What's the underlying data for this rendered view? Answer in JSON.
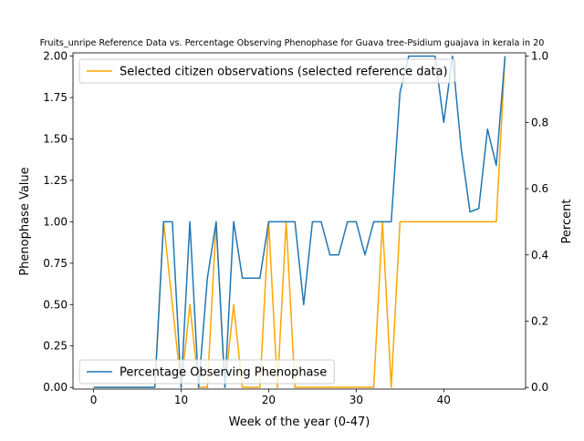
{
  "chart_data": {
    "type": "line",
    "title": "Fruits_unripe Reference Data vs. Percentage Observing Phenophase for Guava tree-Psidium guajava in kerala in 20",
    "xlabel": "Week of the year (0-47)",
    "ylabel_left": "Phenophase Value",
    "ylabel_right": "Percent",
    "xlim": [
      -2.35,
      49.35
    ],
    "ylim_left": [
      -0.01,
      2.02
    ],
    "ylim_right": [
      -0.005,
      1.01
    ],
    "x_ticks": [
      0,
      10,
      20,
      30,
      40
    ],
    "x_tick_labels": [
      "0",
      "10",
      "20",
      "30",
      "40"
    ],
    "y_left_ticks": [
      0.0,
      0.25,
      0.5,
      0.75,
      1.0,
      1.25,
      1.5,
      1.75,
      2.0
    ],
    "y_left_tick_labels": [
      "0.00",
      "0.25",
      "0.50",
      "0.75",
      "1.00",
      "1.25",
      "1.50",
      "1.75",
      "2.00"
    ],
    "y_right_ticks": [
      0.0,
      0.2,
      0.4,
      0.6,
      0.8,
      1.0
    ],
    "y_right_tick_labels": [
      "0.0",
      "0.2",
      "0.4",
      "0.6",
      "0.8",
      "1.0"
    ],
    "grid": false,
    "series": [
      {
        "name": "Selected citizen observations (selected reference data)",
        "axis": "left",
        "color": "#ffa500",
        "legend_position": "upper-left",
        "x": [
          0,
          1,
          2,
          3,
          4,
          5,
          6,
          7,
          8,
          9,
          10,
          11,
          12,
          13,
          14,
          15,
          16,
          17,
          18,
          19,
          20,
          21,
          22,
          23,
          24,
          25,
          26,
          27,
          28,
          29,
          30,
          31,
          32,
          33,
          34,
          35,
          36,
          37,
          38,
          39,
          40,
          41,
          42,
          43,
          44,
          45,
          46,
          47
        ],
        "y": [
          0,
          0,
          0,
          0,
          0,
          0,
          0,
          0,
          1,
          0.5,
          0,
          0.5,
          0,
          0,
          1,
          0,
          0.5,
          0,
          0,
          0,
          1,
          0,
          1,
          0,
          0,
          0,
          0,
          0,
          0,
          0,
          0,
          0,
          0,
          1,
          0,
          1,
          1,
          1,
          1,
          1,
          1,
          1,
          1,
          1,
          1,
          1,
          1,
          2
        ]
      },
      {
        "name": "Percentage Observing Phenophase",
        "axis": "right",
        "color": "#1f77b4",
        "legend_position": "lower-left",
        "x": [
          0,
          1,
          2,
          3,
          4,
          5,
          6,
          7,
          8,
          9,
          10,
          11,
          12,
          13,
          14,
          15,
          16,
          17,
          18,
          19,
          20,
          21,
          22,
          23,
          24,
          25,
          26,
          27,
          28,
          29,
          30,
          31,
          32,
          33,
          34,
          35,
          36,
          37,
          38,
          39,
          40,
          41,
          42,
          43,
          44,
          45,
          46,
          47
        ],
        "y": [
          0,
          0,
          0,
          0,
          0,
          0,
          0,
          0,
          0.5,
          0.5,
          0,
          0.5,
          0,
          0.33,
          0.5,
          0,
          0.5,
          0.33,
          0.33,
          0.33,
          0.5,
          0.5,
          0.5,
          0.5,
          0.25,
          0.5,
          0.5,
          0.4,
          0.4,
          0.5,
          0.5,
          0.4,
          0.5,
          0.5,
          0.5,
          0.89,
          1.0,
          1.0,
          1.0,
          1.0,
          0.8,
          1.0,
          0.72,
          0.53,
          0.54,
          0.78,
          0.67,
          1.0
        ]
      }
    ]
  }
}
